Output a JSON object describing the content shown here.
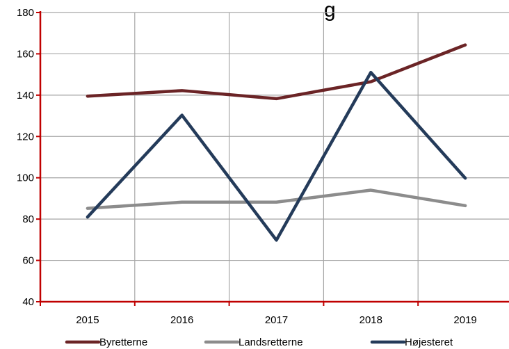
{
  "chart_data": {
    "type": "line",
    "title": "",
    "title_fragment": "g",
    "xlabel": "",
    "ylabel": "",
    "categories": [
      "2015",
      "2016",
      "2017",
      "2018",
      "2019"
    ],
    "ylim": [
      40,
      180
    ],
    "yticks": [
      40,
      60,
      80,
      100,
      120,
      140,
      160,
      180
    ],
    "grid": true,
    "legend": "bottom",
    "axis_color": "#c00000",
    "grid_color": "#a6a6a6",
    "series": [
      {
        "name": "Byretterne",
        "color": "#6b2426",
        "values": [
          139.5,
          142.2,
          138.3,
          146.5,
          164.3
        ]
      },
      {
        "name": "Landsretterne",
        "color": "#8c8c8c",
        "values": [
          85.2,
          88.2,
          88.2,
          94.0,
          86.5
        ]
      },
      {
        "name": "Højesteret",
        "color": "#243b5a",
        "values": [
          81.0,
          130.3,
          69.8,
          151.0,
          99.8
        ]
      }
    ]
  }
}
